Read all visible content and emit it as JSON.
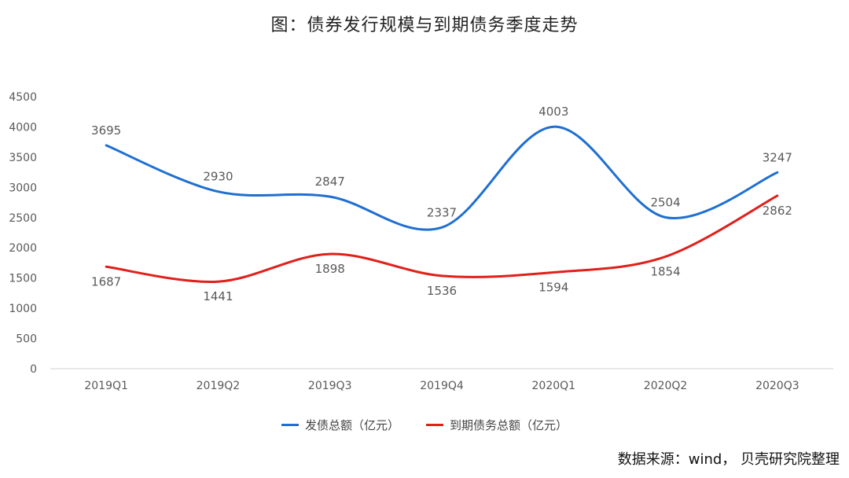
{
  "chart_data": {
    "type": "line",
    "title": "图：债券发行规模与到期债务季度走势",
    "categories": [
      "2019Q1",
      "2019Q2",
      "2019Q3",
      "2019Q4",
      "2020Q1",
      "2020Q2",
      "2020Q3"
    ],
    "series": [
      {
        "name": "发债总额（亿元）",
        "color": "#1f6fd1",
        "values": [
          3695,
          2930,
          2847,
          2337,
          4003,
          2504,
          3247
        ]
      },
      {
        "name": "到期债务总额（亿元）",
        "color": "#e0201b",
        "values": [
          1687,
          1441,
          1898,
          1536,
          1594,
          1854,
          2862
        ]
      }
    ],
    "ylim": [
      0,
      4500
    ],
    "yticks": [
      0,
      500,
      1000,
      1500,
      2000,
      2500,
      3000,
      3500,
      4000,
      4500
    ],
    "grid": false,
    "smooth": true,
    "legend_position": "bottom"
  },
  "source_note": "数据来源：wind，  贝壳研究院整理"
}
